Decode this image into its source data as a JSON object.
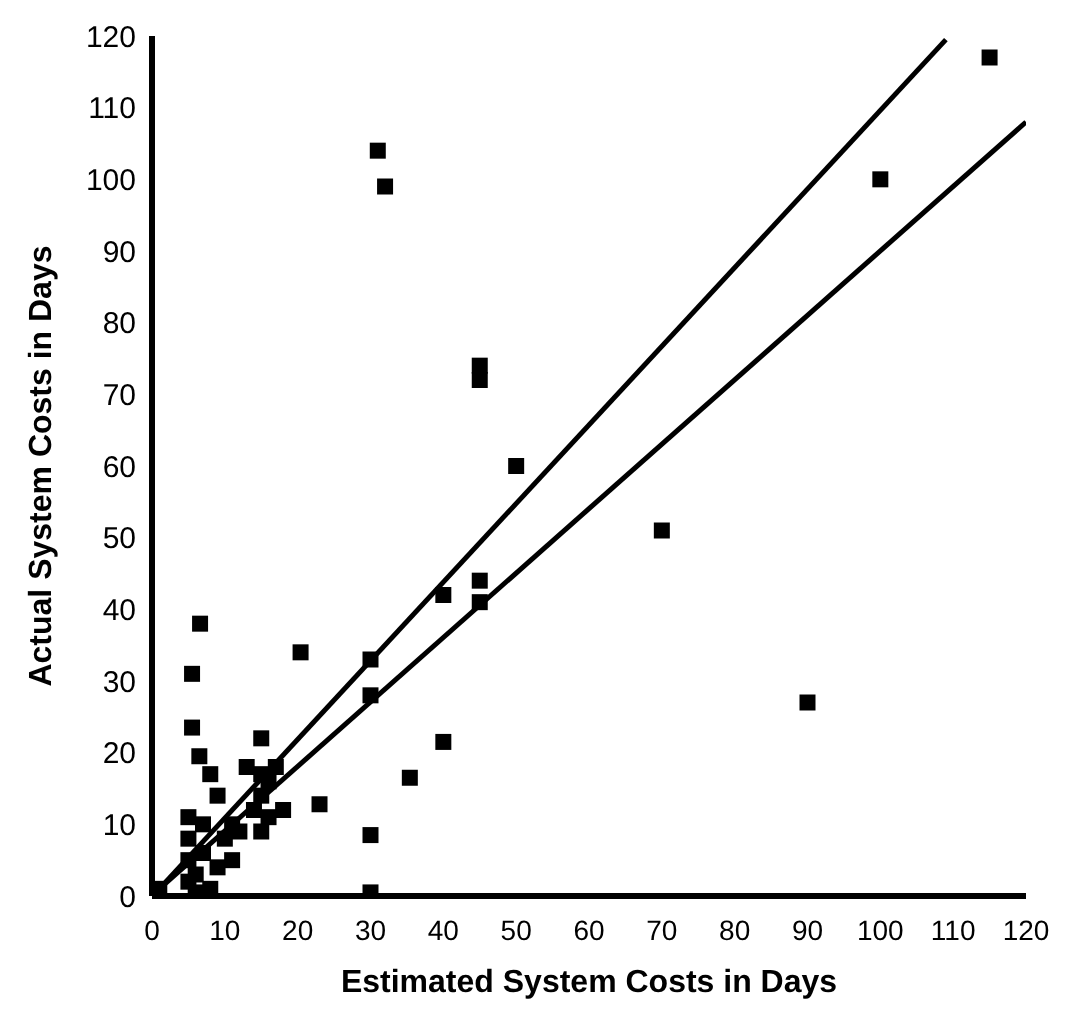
{
  "chart_data": {
    "type": "scatter",
    "xlabel": "Estimated System Costs in Days",
    "ylabel": "Actual System Costs in Days",
    "xlim": [
      0,
      120
    ],
    "ylim": [
      0,
      120
    ],
    "xticks": [
      0,
      10,
      20,
      30,
      40,
      50,
      60,
      70,
      80,
      90,
      100,
      110,
      120
    ],
    "yticks": [
      0,
      10,
      20,
      30,
      40,
      50,
      60,
      70,
      80,
      90,
      100,
      110,
      120
    ],
    "grid": false,
    "legend": false,
    "marker": "square",
    "series": [
      {
        "type": "scatter",
        "color": "#000000",
        "x": [
          115,
          100,
          31,
          32,
          45,
          45,
          50,
          70,
          90,
          40,
          45,
          45,
          6.6,
          5.5,
          5.5,
          6.5,
          20.4,
          30,
          30,
          30,
          30,
          35.4,
          40,
          23,
          15,
          16,
          1,
          5,
          5,
          5,
          5,
          6,
          7,
          7,
          8,
          9,
          9,
          10,
          11,
          11,
          12,
          13,
          14,
          15,
          15,
          15,
          16,
          17,
          18,
          6,
          8
        ],
        "values": [
          117,
          100,
          104,
          99,
          74,
          72,
          60,
          51,
          27,
          42,
          44,
          41,
          38,
          31,
          23.5,
          19.5,
          34,
          33,
          28,
          8.5,
          0.5,
          16.5,
          21.5,
          12.8,
          22,
          11,
          1,
          2,
          5,
          8,
          11,
          3,
          6,
          10,
          17,
          4,
          14,
          8,
          5,
          10,
          9,
          18,
          12,
          17,
          14,
          9,
          16,
          18,
          12,
          0.5,
          1
        ]
      },
      {
        "type": "line",
        "color": "#000000",
        "marker": "none",
        "x": [
          1,
          109
        ],
        "values": [
          1,
          119.5
        ]
      },
      {
        "type": "line",
        "color": "#000000",
        "marker": "none",
        "x": [
          1,
          120
        ],
        "values": [
          1,
          108
        ]
      }
    ]
  }
}
